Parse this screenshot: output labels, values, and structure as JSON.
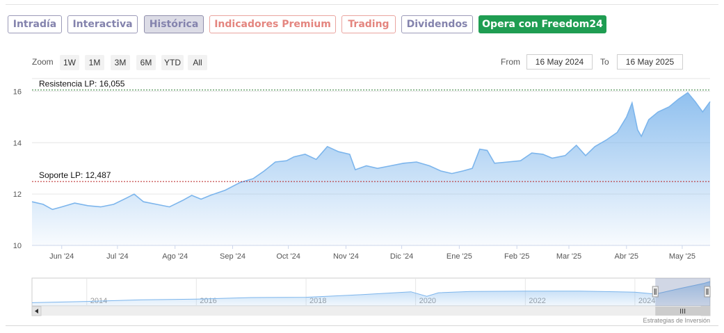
{
  "tabs": [
    {
      "label": "Intradía",
      "style": "normal"
    },
    {
      "label": "Interactiva",
      "style": "normal"
    },
    {
      "label": "Histórica",
      "style": "active"
    },
    {
      "label": "Indicadores Premium",
      "style": "premium"
    },
    {
      "label": "Trading",
      "style": "premium"
    },
    {
      "label": "Dividendos",
      "style": "normal"
    },
    {
      "label": "Opera con Freedom24",
      "style": "cta"
    }
  ],
  "zoom": {
    "label": "Zoom",
    "buttons": [
      "1W",
      "1M",
      "3M",
      "6M",
      "YTD",
      "All"
    ]
  },
  "range": {
    "from_label": "From",
    "from_value": "16 May 2024",
    "to_label": "To",
    "to_value": "16 May 2025"
  },
  "colors": {
    "series_line": "#7cb5ec",
    "resistance": "#2e7d32",
    "support": "#b71c1c",
    "active_tab": "#dcdce6",
    "cta": "#1f9d52"
  },
  "chart_data": {
    "type": "area",
    "yticks": [
      "10",
      "12",
      "14",
      "16"
    ],
    "ylim": [
      10,
      16.5
    ],
    "xticks": [
      "Jun '24",
      "Jul '24",
      "Ago '24",
      "Sep '24",
      "Oct '24",
      "Nov '24",
      "Dic '24",
      "Ene '25",
      "Feb '25",
      "Mar '25",
      "Abr '25",
      "May '25"
    ],
    "xlim": [
      "2024-05-16",
      "2025-05-16"
    ],
    "series": [
      {
        "points": [
          [
            "2024-05-16",
            11.7
          ],
          [
            "2024-05-22",
            11.6
          ],
          [
            "2024-05-27",
            11.4
          ],
          [
            "2024-06-01",
            11.5
          ],
          [
            "2024-06-08",
            11.65
          ],
          [
            "2024-06-15",
            11.55
          ],
          [
            "2024-06-22",
            11.5
          ],
          [
            "2024-06-29",
            11.6
          ],
          [
            "2024-07-06",
            11.85
          ],
          [
            "2024-07-10",
            12.0
          ],
          [
            "2024-07-15",
            11.7
          ],
          [
            "2024-07-22",
            11.6
          ],
          [
            "2024-07-29",
            11.5
          ],
          [
            "2024-08-05",
            11.75
          ],
          [
            "2024-08-10",
            11.95
          ],
          [
            "2024-08-15",
            11.8
          ],
          [
            "2024-08-20",
            11.95
          ],
          [
            "2024-08-28",
            12.15
          ],
          [
            "2024-09-05",
            12.45
          ],
          [
            "2024-09-12",
            12.6
          ],
          [
            "2024-09-18",
            12.9
          ],
          [
            "2024-09-24",
            13.25
          ],
          [
            "2024-09-30",
            13.3
          ],
          [
            "2024-10-04",
            13.45
          ],
          [
            "2024-10-10",
            13.55
          ],
          [
            "2024-10-16",
            13.35
          ],
          [
            "2024-10-22",
            13.85
          ],
          [
            "2024-10-28",
            13.65
          ],
          [
            "2024-11-03",
            13.55
          ],
          [
            "2024-11-06",
            12.95
          ],
          [
            "2024-11-12",
            13.1
          ],
          [
            "2024-11-18",
            13.0
          ],
          [
            "2024-11-25",
            13.1
          ],
          [
            "2024-12-02",
            13.2
          ],
          [
            "2024-12-09",
            13.25
          ],
          [
            "2024-12-16",
            13.1
          ],
          [
            "2024-12-22",
            12.9
          ],
          [
            "2024-12-28",
            12.8
          ],
          [
            "2025-01-03",
            12.9
          ],
          [
            "2025-01-08",
            13.0
          ],
          [
            "2025-01-12",
            13.75
          ],
          [
            "2025-01-16",
            13.7
          ],
          [
            "2025-01-20",
            13.2
          ],
          [
            "2025-01-27",
            13.25
          ],
          [
            "2025-02-03",
            13.3
          ],
          [
            "2025-02-09",
            13.6
          ],
          [
            "2025-02-15",
            13.55
          ],
          [
            "2025-02-20",
            13.4
          ],
          [
            "2025-02-27",
            13.5
          ],
          [
            "2025-03-05",
            13.9
          ],
          [
            "2025-03-10",
            13.5
          ],
          [
            "2025-03-15",
            13.85
          ],
          [
            "2025-03-21",
            14.1
          ],
          [
            "2025-03-27",
            14.4
          ],
          [
            "2025-04-01",
            15.0
          ],
          [
            "2025-04-04",
            15.55
          ],
          [
            "2025-04-07",
            14.5
          ],
          [
            "2025-04-09",
            14.25
          ],
          [
            "2025-04-13",
            14.9
          ],
          [
            "2025-04-18",
            15.2
          ],
          [
            "2025-04-24",
            15.4
          ],
          [
            "2025-04-29",
            15.7
          ],
          [
            "2025-05-04",
            15.95
          ],
          [
            "2025-05-08",
            15.6
          ],
          [
            "2025-05-12",
            15.2
          ],
          [
            "2025-05-16",
            15.6
          ]
        ]
      }
    ],
    "annotations": [
      {
        "label": "Resistencia LP: 16,055",
        "value": 16.055,
        "kind": "resistance"
      },
      {
        "label": "Soporte LP: 12,487",
        "value": 12.487,
        "kind": "support"
      }
    ],
    "navigator": {
      "year_labels": [
        "2014",
        "2016",
        "2018",
        "2020",
        "2022",
        "2024"
      ],
      "xlim": [
        "2013-01-01",
        "2025-05-16"
      ],
      "points": [
        [
          "2013-01-01",
          9.0
        ],
        [
          "2014-01-01",
          9.4
        ],
        [
          "2015-01-01",
          9.9
        ],
        [
          "2016-01-01",
          10.1
        ],
        [
          "2017-01-01",
          10.6
        ],
        [
          "2018-01-01",
          10.7
        ],
        [
          "2019-01-01",
          11.5
        ],
        [
          "2019-12-01",
          12.4
        ],
        [
          "2020-03-15",
          11.0
        ],
        [
          "2020-06-01",
          12.1
        ],
        [
          "2021-01-01",
          12.5
        ],
        [
          "2022-01-01",
          12.6
        ],
        [
          "2023-01-01",
          12.6
        ],
        [
          "2024-01-01",
          12.3
        ],
        [
          "2024-05-16",
          11.7
        ],
        [
          "2024-11-01",
          13.5
        ],
        [
          "2025-04-01",
          15.0
        ],
        [
          "2025-05-16",
          15.6
        ]
      ],
      "selected_from": "2024-05-16",
      "selected_to": "2025-05-16"
    },
    "credit": "Estrategias de Inversión"
  }
}
